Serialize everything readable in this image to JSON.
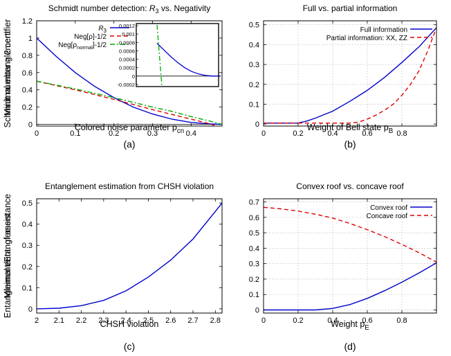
{
  "panels": [
    {
      "id": "a",
      "caption": "(a)",
      "chart_data": {
        "type": "line",
        "title": "Schmidt number detection: R3 vs. Negativity",
        "xlabel": "Colored noise parameter p_cn",
        "ylabel": "Schmidt number > 2 certifier",
        "xlim": [
          0,
          0.48
        ],
        "ylim": [
          -0.02,
          1.2
        ],
        "xticks": [
          0,
          0.1,
          0.2,
          0.3,
          0.4
        ],
        "xtick_labels": [
          "0",
          "0.1",
          "0.2",
          "0.3",
          "0.4"
        ],
        "yticks": [
          0,
          0.2,
          0.4,
          0.6,
          0.8,
          1,
          1.2
        ],
        "ytick_labels": [
          "0",
          "0.2",
          "0.4",
          "0.6",
          "0.8",
          "1",
          "1.2"
        ],
        "grid": false,
        "legend_position": "top-left",
        "series": [
          {
            "name": "R3",
            "color": "#0000cc",
            "dash": "solid",
            "x": [
              0,
              0.05,
              0.1,
              0.15,
              0.2,
              0.25,
              0.3,
              0.35,
              0.4,
              0.45,
              0.48
            ],
            "y": [
              1.0,
              0.79,
              0.6,
              0.44,
              0.31,
              0.2,
              0.12,
              0.06,
              0.022,
              0.004,
              0.0
            ]
          },
          {
            "name": "Neg[ρ]-1/2",
            "color": "#dd0000",
            "dash": "dashed",
            "x": [
              0,
              0.1,
              0.2,
              0.3,
              0.35,
              0.4,
              0.44,
              0.46
            ],
            "y": [
              0.5,
              0.4,
              0.29,
              0.17,
              0.115,
              0.06,
              0.015,
              -0.01
            ]
          },
          {
            "name": "Neg[ρnormal]-1/2",
            "color": "#00aa00",
            "dash": "dashdot",
            "x": [
              0,
              0.1,
              0.2,
              0.3,
              0.35,
              0.4,
              0.45,
              0.48
            ],
            "y": [
              0.5,
              0.41,
              0.31,
              0.2,
              0.15,
              0.09,
              0.035,
              0.0
            ]
          }
        ]
      },
      "inset": {
        "yticks": [
          -0.0002,
          0,
          0.0002,
          0.0004,
          0.0006,
          0.0008,
          0.001,
          0.0012
        ],
        "ytick_labels": [
          "-0.0002",
          "0",
          "0.0002",
          "0.0004",
          "0.0006",
          "0.0008",
          "0.001",
          "0.0012"
        ]
      }
    },
    {
      "id": "b",
      "caption": "(b)",
      "chart_data": {
        "type": "line",
        "title": "Full vs. partial information",
        "xlabel": "Weight of Bell state p_B",
        "ylabel": "Minimal entanglement",
        "xlim": [
          0,
          1
        ],
        "ylim": [
          -0.01,
          0.52
        ],
        "xticks": [
          0,
          0.2,
          0.4,
          0.6,
          0.8
        ],
        "xtick_labels": [
          "0",
          "0.2",
          "0.4",
          "0.6",
          "0.8"
        ],
        "yticks": [
          0,
          0.1,
          0.2,
          0.3,
          0.4,
          0.5
        ],
        "ytick_labels": [
          "0",
          "0.1",
          "0.2",
          "0.3",
          "0.4",
          "0.5"
        ],
        "grid": true,
        "legend_position": "top-right",
        "series": [
          {
            "name": "Full information",
            "color": "#0000cc",
            "dash": "solid",
            "x": [
              0,
              0.2,
              0.25,
              0.3,
              0.4,
              0.5,
              0.6,
              0.7,
              0.8,
              0.9,
              1.0
            ],
            "y": [
              0.005,
              0.005,
              0.015,
              0.03,
              0.065,
              0.115,
              0.17,
              0.235,
              0.31,
              0.39,
              0.485
            ]
          },
          {
            "name": "Partial information: XX, ZZ",
            "color": "#dd0000",
            "dash": "dashed",
            "x": [
              0,
              0.5,
              0.55,
              0.6,
              0.65,
              0.7,
              0.75,
              0.8,
              0.85,
              0.9,
              0.95,
              1.0
            ],
            "y": [
              0.005,
              0.005,
              0.01,
              0.025,
              0.045,
              0.07,
              0.1,
              0.145,
              0.2,
              0.27,
              0.37,
              0.485
            ]
          }
        ]
      }
    },
    {
      "id": "c",
      "caption": "(c)",
      "chart_data": {
        "type": "line",
        "title": "Entanglement estimation from CHSH violation",
        "xlabel": "CHSH violation",
        "ylabel": "Minimal entanglement",
        "xlim": [
          2,
          2.83
        ],
        "ylim": [
          -0.02,
          0.52
        ],
        "xticks": [
          2,
          2.1,
          2.2,
          2.3,
          2.4,
          2.5,
          2.6,
          2.7,
          2.8
        ],
        "xtick_labels": [
          "2",
          "2.1",
          "2.2",
          "2.3",
          "2.4",
          "2.5",
          "2.6",
          "2.7",
          "2.8"
        ],
        "yticks": [
          0,
          0.1,
          0.2,
          0.3,
          0.4,
          0.5
        ],
        "ytick_labels": [
          "0",
          "0.1",
          "0.2",
          "0.3",
          "0.4",
          "0.5"
        ],
        "grid": false,
        "legend_position": "none",
        "series": [
          {
            "color": "#0000cc",
            "dash": "solid",
            "x": [
              2.0,
              2.1,
              2.2,
              2.3,
              2.4,
              2.5,
              2.6,
              2.7,
              2.8,
              2.83
            ],
            "y": [
              0.0,
              0.003,
              0.015,
              0.04,
              0.085,
              0.15,
              0.23,
              0.33,
              0.46,
              0.5
            ]
          }
        ]
      }
    },
    {
      "id": "d",
      "caption": "(d)",
      "chart_data": {
        "type": "line",
        "title": "Convex roof vs. concave roof",
        "xlabel": "Weight p_E",
        "ylabel": "Entanglement/Ent. of assistance",
        "xlim": [
          0,
          1
        ],
        "ylim": [
          -0.02,
          0.72
        ],
        "xticks": [
          0,
          0.2,
          0.4,
          0.6,
          0.8
        ],
        "xtick_labels": [
          "0",
          "0.2",
          "0.4",
          "0.6",
          "0.8"
        ],
        "yticks": [
          0,
          0.1,
          0.2,
          0.3,
          0.4,
          0.5,
          0.6,
          0.7
        ],
        "ytick_labels": [
          "0",
          "0.1",
          "0.2",
          "0.3",
          "0.4",
          "0.5",
          "0.6",
          "0.7"
        ],
        "grid": true,
        "legend_position": "top-right",
        "series": [
          {
            "name": "Convex roof",
            "color": "#0000cc",
            "dash": "solid",
            "x": [
              0,
              0.3,
              0.4,
              0.5,
              0.6,
              0.7,
              0.8,
              0.9,
              1.0
            ],
            "y": [
              0.0,
              0.0,
              0.01,
              0.035,
              0.075,
              0.125,
              0.18,
              0.24,
              0.305
            ]
          },
          {
            "name": "Concave roof",
            "color": "#dd0000",
            "dash": "dashed",
            "x": [
              0,
              0.1,
              0.2,
              0.3,
              0.4,
              0.5,
              0.6,
              0.7,
              0.8,
              0.9,
              1.0
            ],
            "y": [
              0.665,
              0.655,
              0.64,
              0.62,
              0.595,
              0.56,
              0.52,
              0.475,
              0.425,
              0.37,
              0.31
            ]
          }
        ]
      }
    }
  ]
}
